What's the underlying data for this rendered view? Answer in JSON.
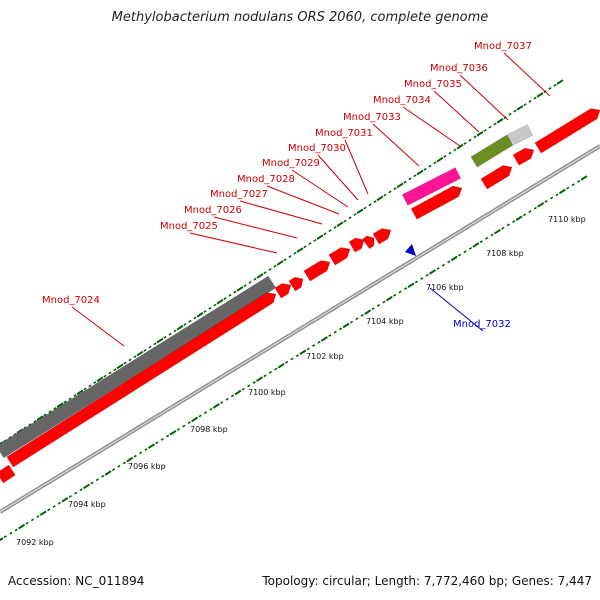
{
  "title": "Methylobacterium nodulans ORS 2060, complete genome",
  "footer": {
    "accession": "Accession: NC_011894",
    "summary": "Topology: circular; Length: 7,772,460 bp; Genes: 7,447"
  },
  "colors": {
    "cds": "#ff0000",
    "gene_gray": "#666666",
    "rrna_pink": "#ff1493",
    "olive": "#6b8e23",
    "light_gray": "#c8c8c8",
    "tick_green": "#006400",
    "label_red": "#cc0000",
    "label_blue": "#0000cc"
  },
  "scale_labels": [
    "7092 kbp",
    "7094 kbp",
    "7096 kbp",
    "7098 kbp",
    "7100 kbp",
    "7102 kbp",
    "7104 kbp",
    "7106 kbp",
    "7108 kbp",
    "7110 kbp"
  ],
  "genes": [
    {
      "name": "Mnod_7024",
      "strand": "+"
    },
    {
      "name": "Mnod_7025",
      "strand": "+"
    },
    {
      "name": "Mnod_7026",
      "strand": "+"
    },
    {
      "name": "Mnod_7027",
      "strand": "+"
    },
    {
      "name": "Mnod_7028",
      "strand": "+"
    },
    {
      "name": "Mnod_7029",
      "strand": "+"
    },
    {
      "name": "Mnod_7030",
      "strand": "+"
    },
    {
      "name": "Mnod_7031",
      "strand": "+"
    },
    {
      "name": "Mnod_7032",
      "strand": "-"
    },
    {
      "name": "Mnod_7033",
      "strand": "+"
    },
    {
      "name": "Mnod_7034",
      "strand": "+"
    },
    {
      "name": "Mnod_7035",
      "strand": "+"
    },
    {
      "name": "Mnod_7036",
      "strand": "+"
    },
    {
      "name": "Mnod_7037",
      "strand": "+"
    }
  ]
}
